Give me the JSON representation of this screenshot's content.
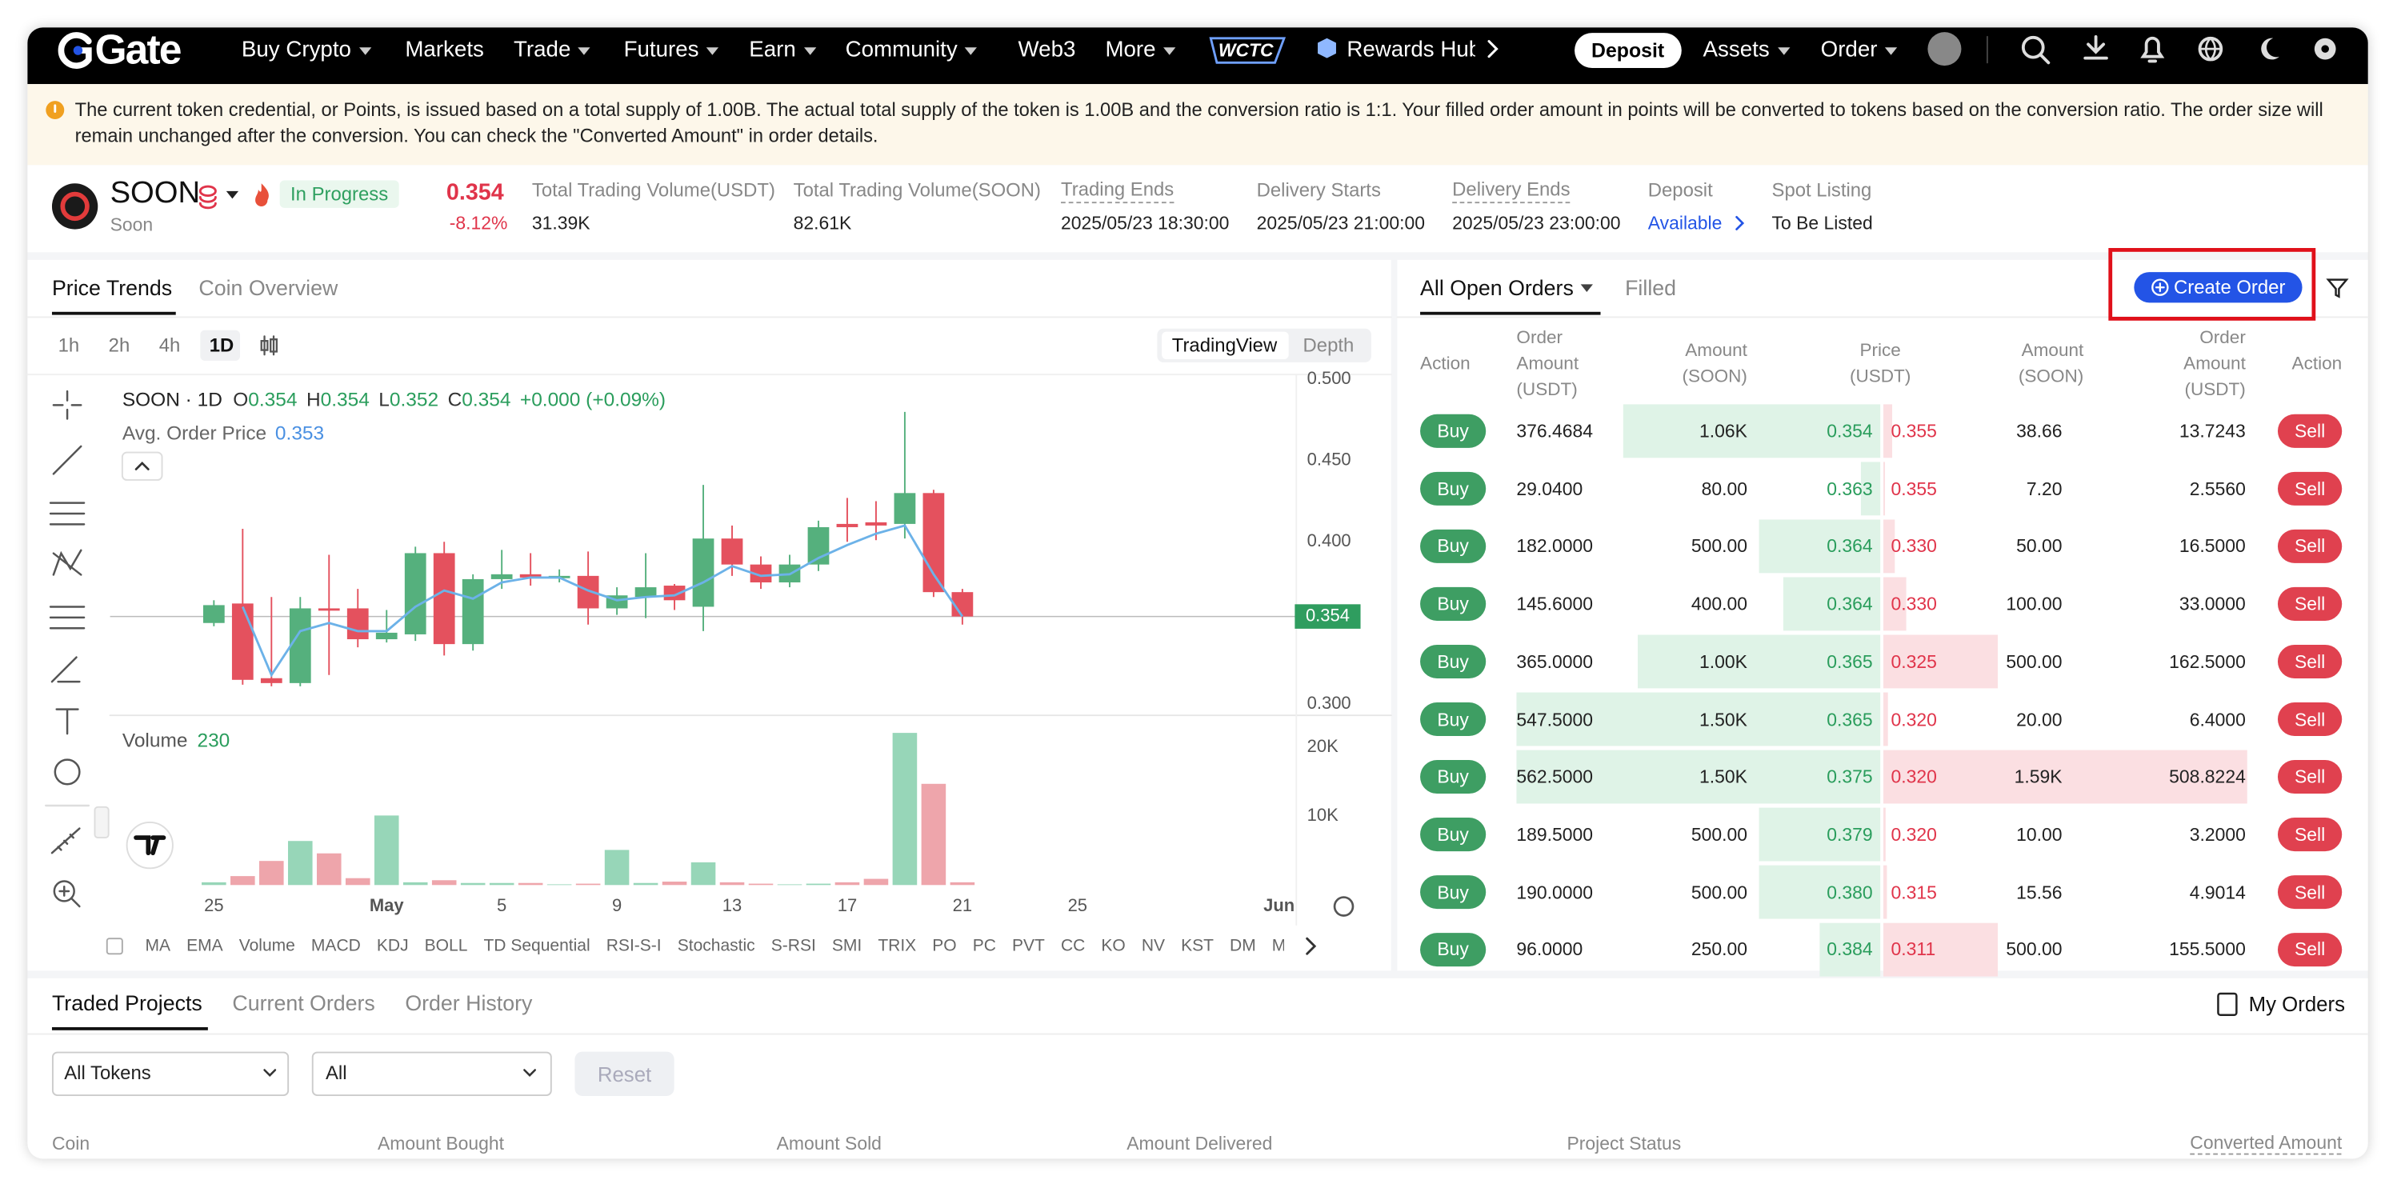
{
  "nav": {
    "logo": "Gate",
    "items": [
      "Buy Crypto",
      "Markets",
      "Trade",
      "Futures",
      "Earn",
      "Community",
      "Web3",
      "More"
    ],
    "badge": "WCTC",
    "rewards": "Rewards Hub",
    "deposit": "Deposit",
    "assets": "Assets",
    "order": "Order"
  },
  "notice": "The current token credential, or Points, is issued based on a total supply of 1.00B. The actual total supply of the token is 1.00B and the conversion ratio is 1:1. Your filled order amount in points will be converted to tokens based on the conversion ratio. The order size will remain unchanged after the conversion. You can check the \"Converted Amount\" in order details.",
  "token": {
    "symbol": "SOON",
    "name": "Soon",
    "status": "In Progress",
    "price": "0.354",
    "change": "-8.12%",
    "stats": [
      {
        "label": "Total Trading Volume(USDT)",
        "value": "31.39K"
      },
      {
        "label": "Total Trading Volume(SOON)",
        "value": "82.61K"
      },
      {
        "label": "Trading Ends",
        "value": "2025/05/23 18:30:00"
      },
      {
        "label": "Delivery Starts",
        "value": "2025/05/23 21:00:00"
      },
      {
        "label": "Delivery Ends",
        "value": "2025/05/23 23:00:00"
      },
      {
        "label": "Deposit",
        "value": "Available"
      },
      {
        "label": "Spot Listing",
        "value": "To Be Listed"
      }
    ]
  },
  "chart_panel": {
    "tabs": [
      "Price Trends",
      "Coin Overview"
    ],
    "intervals": [
      "1h",
      "2h",
      "4h",
      "1D"
    ],
    "views": [
      "TradingView",
      "Depth"
    ],
    "legend": {
      "title": "SOON · 1D",
      "ohlc": [
        [
          "O",
          "0.354"
        ],
        [
          "H",
          "0.354"
        ],
        [
          "L",
          "0.352"
        ],
        [
          "C",
          "0.354"
        ]
      ],
      "change": "+0.000 (+0.09%)",
      "avg_label": "Avg. Order Price",
      "avg_value": "0.353",
      "volume_label": "Volume",
      "volume_value": "230"
    },
    "indicators": [
      "MA",
      "EMA",
      "Volume",
      "MACD",
      "KDJ",
      "BOLL",
      "TD Sequential",
      "RSI-S-I",
      "Stochastic",
      "S-RSI",
      "SMI",
      "TRIX",
      "PO",
      "PC",
      "PVT",
      "CC",
      "KO",
      "NV",
      "KST",
      "DM",
      "Momentum"
    ]
  },
  "chart_data": {
    "type": "candlestick",
    "candles": [
      {
        "o": 0.35,
        "h": 0.364,
        "l": 0.348,
        "c": 0.361
      },
      {
        "o": 0.362,
        "h": 0.408,
        "l": 0.312,
        "c": 0.315
      },
      {
        "o": 0.316,
        "h": 0.366,
        "l": 0.311,
        "c": 0.313
      },
      {
        "o": 0.313,
        "h": 0.366,
        "l": 0.311,
        "c": 0.359
      },
      {
        "o": 0.359,
        "h": 0.392,
        "l": 0.318,
        "c": 0.358
      },
      {
        "o": 0.359,
        "h": 0.371,
        "l": 0.335,
        "c": 0.34
      },
      {
        "o": 0.34,
        "h": 0.358,
        "l": 0.338,
        "c": 0.344
      },
      {
        "o": 0.343,
        "h": 0.397,
        "l": 0.339,
        "c": 0.393
      },
      {
        "o": 0.393,
        "h": 0.4,
        "l": 0.33,
        "c": 0.337
      },
      {
        "o": 0.337,
        "h": 0.38,
        "l": 0.333,
        "c": 0.377
      },
      {
        "o": 0.377,
        "h": 0.395,
        "l": 0.371,
        "c": 0.38
      },
      {
        "o": 0.38,
        "h": 0.393,
        "l": 0.373,
        "c": 0.378
      },
      {
        "o": 0.378,
        "h": 0.383,
        "l": 0.375,
        "c": 0.379
      },
      {
        "o": 0.379,
        "h": 0.394,
        "l": 0.349,
        "c": 0.359
      },
      {
        "o": 0.359,
        "h": 0.372,
        "l": 0.355,
        "c": 0.367
      },
      {
        "o": 0.366,
        "h": 0.393,
        "l": 0.353,
        "c": 0.372
      },
      {
        "o": 0.373,
        "h": 0.374,
        "l": 0.358,
        "c": 0.364
      },
      {
        "o": 0.36,
        "h": 0.435,
        "l": 0.345,
        "c": 0.402
      },
      {
        "o": 0.402,
        "h": 0.41,
        "l": 0.379,
        "c": 0.386
      },
      {
        "o": 0.386,
        "h": 0.391,
        "l": 0.371,
        "c": 0.375
      },
      {
        "o": 0.375,
        "h": 0.392,
        "l": 0.372,
        "c": 0.386
      },
      {
        "o": 0.386,
        "h": 0.413,
        "l": 0.382,
        "c": 0.409
      },
      {
        "o": 0.411,
        "h": 0.427,
        "l": 0.4,
        "c": 0.409
      },
      {
        "o": 0.412,
        "h": 0.425,
        "l": 0.401,
        "c": 0.41
      },
      {
        "o": 0.411,
        "h": 0.48,
        "l": 0.402,
        "c": 0.43
      },
      {
        "o": 0.43,
        "h": 0.432,
        "l": 0.366,
        "c": 0.369
      },
      {
        "o": 0.369,
        "h": 0.371,
        "l": 0.349,
        "c": 0.354
      }
    ],
    "avg_line": [
      null,
      0.36,
      0.318,
      0.345,
      0.35,
      0.345,
      0.345,
      0.36,
      0.37,
      0.365,
      0.375,
      0.378,
      0.378,
      0.37,
      0.364,
      0.366,
      0.367,
      0.375,
      0.385,
      0.379,
      0.38,
      0.39,
      0.398,
      0.405,
      0.41,
      0.38,
      0.354
    ],
    "last_price": {
      "value": 0.354,
      "label": "0.354"
    },
    "ylim": [
      0.295,
      0.503
    ],
    "yticks": [
      {
        "value": 0.5,
        "label": "0.500"
      },
      {
        "value": 0.45,
        "label": "0.450"
      },
      {
        "value": 0.4,
        "label": "0.400"
      },
      {
        "value": 0.3,
        "label": "0.300"
      }
    ],
    "xlim": [
      -3.5,
      37.6
    ],
    "xticks": [
      {
        "value": 0,
        "label": "25"
      },
      {
        "value": 6,
        "label": "May"
      },
      {
        "value": 10,
        "label": "5"
      },
      {
        "value": 14,
        "label": "9"
      },
      {
        "value": 18,
        "label": "13"
      },
      {
        "value": 22,
        "label": "17"
      },
      {
        "value": 26,
        "label": "21"
      },
      {
        "value": 30,
        "label": "25"
      },
      {
        "value": 37,
        "label": "Jun"
      }
    ],
    "volume": {
      "values": [
        400,
        1300,
        3500,
        6400,
        4600,
        1000,
        10100,
        400,
        700,
        300,
        300,
        300,
        100,
        200,
        5100,
        300,
        500,
        3300,
        400,
        200,
        100,
        200,
        400,
        900,
        22100,
        14700,
        400
      ],
      "ylim": [
        0,
        24200
      ],
      "yticks": [
        {
          "value": 10000,
          "label": "10K"
        },
        {
          "value": 20000,
          "label": "20K"
        }
      ]
    }
  },
  "order_book": {
    "tabs": [
      "All Open Orders",
      "Filled"
    ],
    "create": "Create Order",
    "headers": [
      "Action",
      "Order Amount (USDT)",
      "Amount (SOON)",
      "Price (USDT)",
      "Amount (SOON)",
      "Order Amount (USDT)",
      "Action"
    ],
    "buy": "Buy",
    "sell": "Sell",
    "bids": {
      "order_amount": [
        "376.4684",
        "29.0400",
        "182.0000",
        "145.6000",
        "365.0000",
        "547.5000",
        "562.5000",
        "189.5000",
        "190.0000",
        "96.0000"
      ],
      "values": [
        1060,
        80,
        500,
        400,
        1000,
        1500,
        1500,
        500,
        500,
        250
      ],
      "value_labels": [
        "1.06K",
        "80.00",
        "500.00",
        "400.00",
        "1.00K",
        "1.50K",
        "1.50K",
        "500.00",
        "500.00",
        "250.00"
      ],
      "price": [
        "0.354",
        "0.363",
        "0.364",
        "0.364",
        "0.365",
        "0.365",
        "0.375",
        "0.379",
        "0.380",
        "0.384"
      ]
    },
    "asks": {
      "price": [
        "0.355",
        "0.355",
        "0.330",
        "0.330",
        "0.325",
        "0.320",
        "0.320",
        "0.320",
        "0.315",
        "0.311"
      ],
      "values": [
        38.66,
        7.2,
        50,
        100,
        500,
        20,
        1590,
        10,
        15.56,
        500
      ],
      "value_labels": [
        "38.66",
        "7.20",
        "50.00",
        "100.00",
        "500.00",
        "20.00",
        "1.59K",
        "10.00",
        "15.56",
        "500.00"
      ],
      "order_amount": [
        "13.7243",
        "2.5560",
        "16.5000",
        "33.0000",
        "162.5000",
        "6.4000",
        "508.8224",
        "3.2000",
        "4.9014",
        "155.5000"
      ]
    }
  },
  "bottom": {
    "tabs": [
      "Traded Projects",
      "Current Orders",
      "Order History"
    ],
    "my_orders": "My Orders",
    "filters": [
      "All Tokens",
      "All"
    ],
    "reset": "Reset",
    "columns": [
      "Coin",
      "Amount Bought",
      "Amount Sold",
      "Amount Delivered",
      "Project Status",
      "Converted Amount"
    ]
  }
}
